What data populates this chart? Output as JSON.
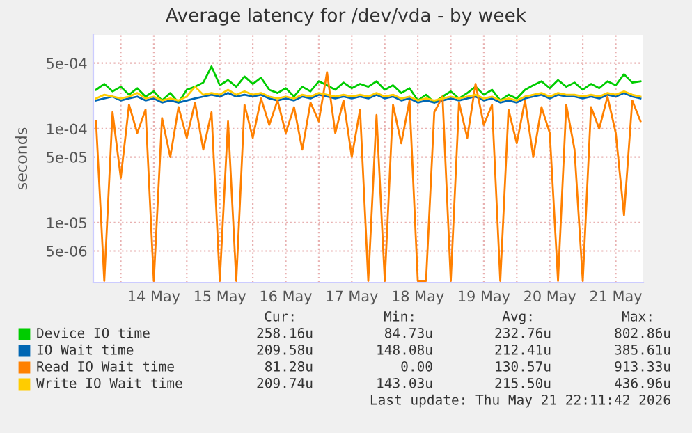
{
  "chart_data": {
    "type": "line",
    "title": "Average latency for /dev/vda - by week",
    "ylabel": "seconds",
    "log": "y",
    "grid": true,
    "legend": "bottom",
    "line_style": "solid",
    "marker": "none",
    "x": [
      "2026-05-13T15:00",
      "2026-05-13T18:00",
      "2026-05-13T21:00",
      "2026-05-14T00:00",
      "2026-05-14T03:00",
      "2026-05-14T06:00",
      "2026-05-14T09:00",
      "2026-05-14T12:00",
      "2026-05-14T15:00",
      "2026-05-14T18:00",
      "2026-05-14T21:00",
      "2026-05-15T00:00",
      "2026-05-15T03:00",
      "2026-05-15T06:00",
      "2026-05-15T09:00",
      "2026-05-15T12:00",
      "2026-05-15T15:00",
      "2026-05-15T18:00",
      "2026-05-15T21:00",
      "2026-05-16T00:00",
      "2026-05-16T03:00",
      "2026-05-16T06:00",
      "2026-05-16T09:00",
      "2026-05-16T12:00",
      "2026-05-16T15:00",
      "2026-05-16T18:00",
      "2026-05-16T21:00",
      "2026-05-17T00:00",
      "2026-05-17T03:00",
      "2026-05-17T06:00",
      "2026-05-17T09:00",
      "2026-05-17T12:00",
      "2026-05-17T15:00",
      "2026-05-17T18:00",
      "2026-05-17T21:00",
      "2026-05-18T00:00",
      "2026-05-18T03:00",
      "2026-05-18T06:00",
      "2026-05-18T09:00",
      "2026-05-18T12:00",
      "2026-05-18T15:00",
      "2026-05-18T18:00",
      "2026-05-18T21:00",
      "2026-05-19T00:00",
      "2026-05-19T03:00",
      "2026-05-19T06:00",
      "2026-05-19T09:00",
      "2026-05-19T12:00",
      "2026-05-19T15:00",
      "2026-05-19T18:00",
      "2026-05-19T21:00",
      "2026-05-20T00:00",
      "2026-05-20T03:00",
      "2026-05-20T06:00",
      "2026-05-20T09:00",
      "2026-05-20T12:00",
      "2026-05-20T15:00",
      "2026-05-20T18:00",
      "2026-05-20T21:00",
      "2026-05-21T00:00",
      "2026-05-21T03:00",
      "2026-05-21T06:00",
      "2026-05-21T09:00",
      "2026-05-21T12:00",
      "2026-05-21T15:00",
      "2026-05-21T18:00",
      "2026-05-21T21:00"
    ],
    "xlim": [
      "2026-05-13T14:00",
      "2026-05-21T22:00"
    ],
    "xticks": [
      {
        "value": "2026-05-14T00:00",
        "label": null
      },
      {
        "value": "2026-05-14T12:00",
        "label": "14 May"
      },
      {
        "value": "2026-05-15T00:00",
        "label": null
      },
      {
        "value": "2026-05-15T12:00",
        "label": "15 May"
      },
      {
        "value": "2026-05-16T00:00",
        "label": null
      },
      {
        "value": "2026-05-16T12:00",
        "label": "16 May"
      },
      {
        "value": "2026-05-17T00:00",
        "label": null
      },
      {
        "value": "2026-05-17T12:00",
        "label": "17 May"
      },
      {
        "value": "2026-05-18T00:00",
        "label": null
      },
      {
        "value": "2026-05-18T12:00",
        "label": "18 May"
      },
      {
        "value": "2026-05-19T00:00",
        "label": null
      },
      {
        "value": "2026-05-19T12:00",
        "label": "19 May"
      },
      {
        "value": "2026-05-20T00:00",
        "label": null
      },
      {
        "value": "2026-05-20T12:00",
        "label": "20 May"
      },
      {
        "value": "2026-05-21T00:00",
        "label": null
      },
      {
        "value": "2026-05-21T12:00",
        "label": "21 May"
      }
    ],
    "ylim": [
      2.3e-06,
      0.001
    ],
    "yticks": [
      {
        "value": 5e-06,
        "label": "5e-06"
      },
      {
        "value": 1e-05,
        "label": "1e-05"
      },
      {
        "value": 5e-05,
        "label": "5e-05"
      },
      {
        "value": 0.0001,
        "label": "1e-04"
      },
      {
        "value": 0.0005,
        "label": "5e-04"
      }
    ],
    "series": [
      {
        "name": "Device IO time",
        "color": "#00cc00",
        "values": [
          0.00026,
          0.0003,
          0.00025,
          0.00028,
          0.00023,
          0.00027,
          0.00022,
          0.00025,
          0.0002,
          0.00024,
          0.00019,
          0.00026,
          0.00028,
          0.00031,
          0.00046,
          0.00029,
          0.00033,
          0.00028,
          0.00036,
          0.0003,
          0.00035,
          0.00026,
          0.00024,
          0.00027,
          0.00022,
          0.00028,
          0.00025,
          0.00032,
          0.00029,
          0.00026,
          0.00031,
          0.00027,
          0.0003,
          0.00028,
          0.00032,
          0.00026,
          0.00029,
          0.00024,
          0.00027,
          0.0002,
          0.00023,
          0.00019,
          0.00022,
          0.00025,
          0.00021,
          0.00024,
          0.00028,
          0.00023,
          0.00026,
          0.0002,
          0.00023,
          0.00021,
          0.00026,
          0.00029,
          0.00032,
          0.00027,
          0.00033,
          0.00028,
          0.00031,
          0.00026,
          0.0003,
          0.00027,
          0.00032,
          0.00029,
          0.00038,
          0.00031,
          0.00032
        ]
      },
      {
        "name": "IO Wait time",
        "color": "#0066b3",
        "values": [
          0.0002,
          0.00021,
          0.00022,
          0.0002,
          0.00021,
          0.00022,
          0.0002,
          0.00021,
          0.00019,
          0.0002,
          0.00019,
          0.0002,
          0.00021,
          0.00022,
          0.00023,
          0.00022,
          0.00024,
          0.00022,
          0.00023,
          0.00022,
          0.00023,
          0.00021,
          0.0002,
          0.00021,
          0.0002,
          0.00022,
          0.00021,
          0.00023,
          0.00022,
          0.00021,
          0.00022,
          0.00021,
          0.00022,
          0.00021,
          0.00023,
          0.00021,
          0.00022,
          0.0002,
          0.00021,
          0.00019,
          0.0002,
          0.00019,
          0.0002,
          0.00021,
          0.0002,
          0.00021,
          0.00022,
          0.0002,
          0.00021,
          0.00019,
          0.0002,
          0.00019,
          0.00021,
          0.00022,
          0.00023,
          0.00021,
          0.00023,
          0.00022,
          0.00022,
          0.00021,
          0.00022,
          0.00021,
          0.00023,
          0.00022,
          0.00024,
          0.00022,
          0.00021
        ]
      },
      {
        "name": "Read IO Wait time",
        "color": "#ff8000",
        "values": [
          0.00012,
          2.4e-06,
          0.00015,
          3e-05,
          0.00018,
          9e-05,
          0.00016,
          2.4e-06,
          0.00013,
          5e-05,
          0.00017,
          8e-05,
          0.00019,
          6e-05,
          0.00015,
          2.4e-06,
          0.00012,
          2.4e-06,
          0.00018,
          8e-05,
          0.00021,
          0.00011,
          0.0002,
          9e-05,
          0.00017,
          6e-05,
          0.00019,
          0.00012,
          0.0004,
          9e-05,
          0.0002,
          5e-05,
          0.00016,
          2.4e-06,
          0.00014,
          2.4e-06,
          0.00018,
          7e-05,
          0.0002,
          2.4e-06,
          2.4e-06,
          0.00015,
          0.00022,
          2.4e-06,
          0.00019,
          8e-05,
          0.0003,
          0.00011,
          0.00018,
          2.4e-06,
          0.00016,
          7e-05,
          0.0002,
          5e-05,
          0.00017,
          9e-05,
          2.4e-06,
          0.00018,
          6e-05,
          2.4e-06,
          0.00017,
          0.0001,
          0.00022,
          9e-05,
          1.2e-05,
          0.0002,
          0.00012
        ]
      },
      {
        "name": "Write IO Wait time",
        "color": "#ffcc00",
        "values": [
          0.00021,
          0.00023,
          0.00022,
          0.00021,
          0.00022,
          0.00024,
          0.00021,
          0.00022,
          0.0002,
          0.00021,
          0.0002,
          0.00022,
          0.00028,
          0.00023,
          0.00024,
          0.00023,
          0.00026,
          0.00023,
          0.00025,
          0.00023,
          0.00024,
          0.00022,
          0.00021,
          0.00022,
          0.00021,
          0.00023,
          0.00022,
          0.00024,
          0.00023,
          0.00022,
          0.00023,
          0.00022,
          0.00023,
          0.00022,
          0.00024,
          0.00022,
          0.00023,
          0.00021,
          0.00022,
          0.0002,
          0.00021,
          0.0002,
          0.00021,
          0.00022,
          0.00021,
          0.00022,
          0.00023,
          0.00021,
          0.00022,
          0.0002,
          0.00021,
          0.0002,
          0.00022,
          0.00023,
          0.00024,
          0.00022,
          0.00024,
          0.00023,
          0.00023,
          0.00022,
          0.00023,
          0.00022,
          0.00024,
          0.00023,
          0.00025,
          0.00023,
          0.00022
        ]
      }
    ],
    "annotations": [
      "Cur:",
      "Min:",
      "Avg:",
      "Max:",
      "258.16u",
      "84.73u",
      "232.76u",
      "802.86u",
      "209.58u",
      "148.08u",
      "212.41u",
      "385.61u",
      "81.28u",
      "0.00",
      "130.57u",
      "913.33u",
      "209.74u",
      "143.03u",
      "215.50u",
      "436.96u",
      "Last update: Thu May 21 22:11:42 2026"
    ]
  }
}
